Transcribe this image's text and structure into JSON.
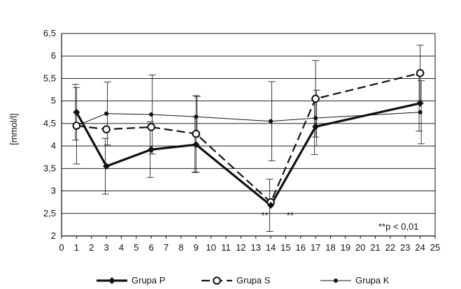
{
  "chart_data": {
    "type": "line",
    "title": "",
    "xlabel": "",
    "ylabel": "[mmol/l]",
    "xlim": [
      0,
      25
    ],
    "ylim": [
      2,
      6.5
    ],
    "x_ticks": [
      0,
      1,
      2,
      3,
      4,
      5,
      6,
      7,
      8,
      9,
      10,
      11,
      12,
      13,
      14,
      15,
      16,
      17,
      18,
      19,
      20,
      21,
      22,
      23,
      24,
      25
    ],
    "y_ticks": [
      2,
      2.5,
      3,
      3.5,
      4,
      4.5,
      5,
      5.5,
      6,
      6.5
    ],
    "y_tick_labels": [
      "2",
      "2,5",
      "3",
      "3,5",
      "4",
      "4,5",
      "5",
      "5,5",
      "6",
      "6,5"
    ],
    "grid": "horizontal",
    "legend_position": "bottom",
    "x": [
      1,
      3,
      6,
      9,
      14,
      17,
      24
    ],
    "series": [
      {
        "name": "Grupa P",
        "style": "thick-solid",
        "marker": "diamond",
        "values": [
          4.75,
          3.55,
          3.92,
          4.03,
          2.68,
          4.43,
          4.95
        ],
        "error": [
          0.62,
          0.62,
          0.62,
          0.62,
          0.58,
          0.62,
          0.62
        ]
      },
      {
        "name": "Grupa S",
        "style": "dashed",
        "marker": "open-circle",
        "values": [
          4.45,
          4.37,
          4.42,
          4.27,
          2.75,
          5.05,
          5.62
        ],
        "error": [
          0.85,
          0.0,
          0.0,
          0.85,
          0.0,
          0.85,
          0.62
        ]
      },
      {
        "name": "Grupa K",
        "style": "thin-solid",
        "marker": "filled-dot",
        "values": [
          4.45,
          4.72,
          4.7,
          4.65,
          4.55,
          4.62,
          4.75
        ],
        "error": [
          0.0,
          0.7,
          0.88,
          0.45,
          0.88,
          0.62,
          0.7
        ]
      }
    ],
    "annotations": [
      {
        "text": "**",
        "x": 13.6,
        "y": 2.45
      },
      {
        "text": "**",
        "x": 15.3,
        "y": 2.45
      },
      {
        "text": "**p < 0,01",
        "x": 23.9,
        "y": 2.2
      }
    ]
  }
}
